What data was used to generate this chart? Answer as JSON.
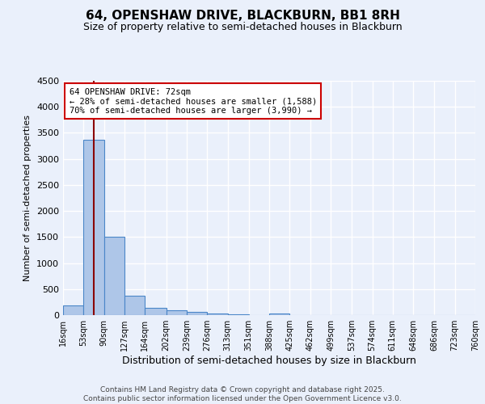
{
  "title": "64, OPENSHAW DRIVE, BLACKBURN, BB1 8RH",
  "subtitle": "Size of property relative to semi-detached houses in Blackburn",
  "xlabel": "Distribution of semi-detached houses by size in Blackburn",
  "ylabel": "Number of semi-detached properties",
  "footer_line1": "Contains HM Land Registry data © Crown copyright and database right 2025.",
  "footer_line2": "Contains public sector information licensed under the Open Government Licence v3.0.",
  "annotation_title": "64 OPENSHAW DRIVE: 72sqm",
  "annotation_line1": "← 28% of semi-detached houses are smaller (1,588)",
  "annotation_line2": "70% of semi-detached houses are larger (3,990) →",
  "property_size": 72,
  "bin_edges": [
    16,
    53,
    90,
    127,
    164,
    202,
    239,
    276,
    313,
    351,
    388,
    425,
    462,
    499,
    537,
    574,
    611,
    648,
    686,
    723,
    760
  ],
  "bar_heights": [
    180,
    3360,
    1500,
    375,
    145,
    90,
    55,
    30,
    20,
    0,
    25,
    0,
    0,
    0,
    0,
    0,
    0,
    0,
    0,
    0
  ],
  "bar_color": "#aec6e8",
  "bar_edge_color": "#4a86c8",
  "vline_color": "#8b0000",
  "vline_x": 72,
  "ylim": [
    0,
    4500
  ],
  "yticks": [
    0,
    500,
    1000,
    1500,
    2000,
    2500,
    3000,
    3500,
    4000,
    4500
  ],
  "bg_color": "#eaf0fb",
  "grid_color": "#ffffff",
  "annotation_box_color": "#ffffff",
  "annotation_box_edge": "#cc0000",
  "tick_labels": [
    "16sqm",
    "53sqm",
    "90sqm",
    "127sqm",
    "164sqm",
    "202sqm",
    "239sqm",
    "276sqm",
    "313sqm",
    "351sqm",
    "388sqm",
    "425sqm",
    "462sqm",
    "499sqm",
    "537sqm",
    "574sqm",
    "611sqm",
    "648sqm",
    "686sqm",
    "723sqm",
    "760sqm"
  ]
}
